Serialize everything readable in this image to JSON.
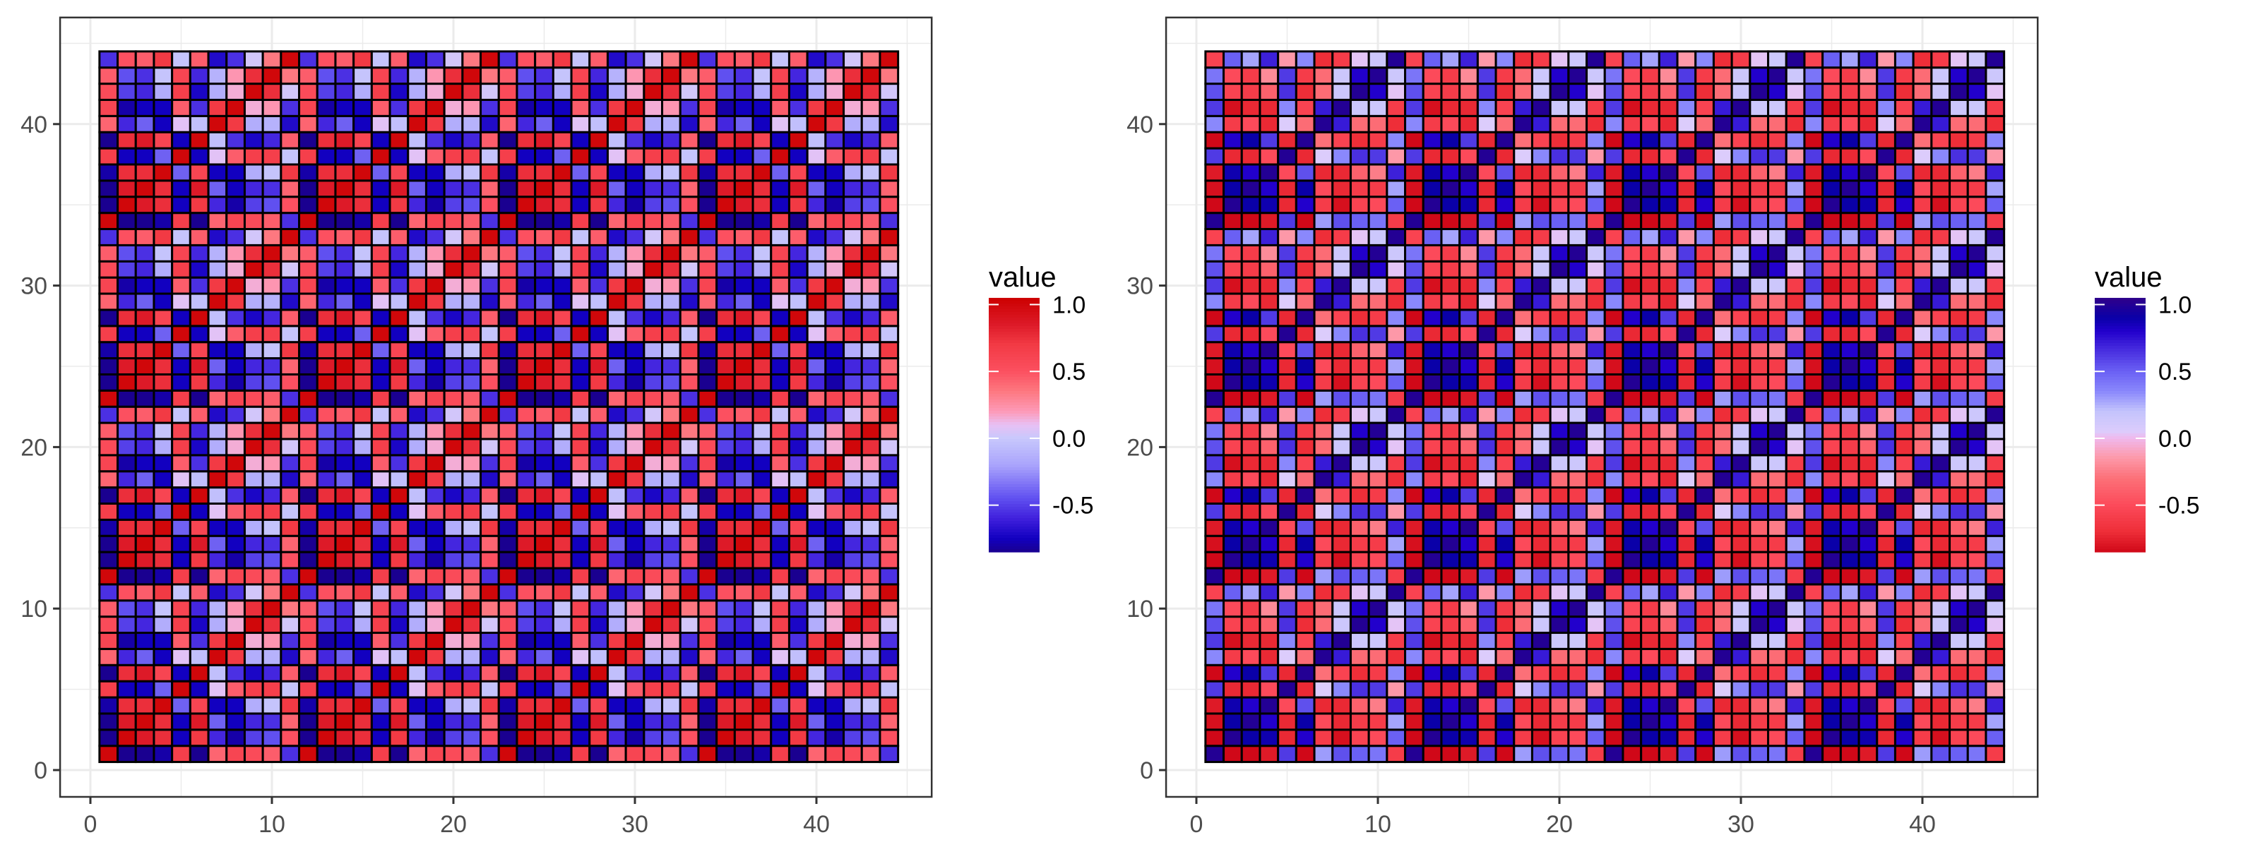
{
  "chart_data": [
    {
      "type": "heatmap",
      "title": "",
      "xlabel": "",
      "ylabel": "",
      "x_range": [
        1,
        44
      ],
      "y_range": [
        1,
        44
      ],
      "xlim": [
        -1.67,
        46.35
      ],
      "ylim": [
        -1.66,
        46.6
      ],
      "x_ticks": [
        "0",
        "10",
        "20",
        "30",
        "40"
      ],
      "y_ticks": [
        "0",
        "10",
        "20",
        "30",
        "40"
      ],
      "grid": true,
      "period": 11,
      "z_tile_rows_bottom_to_top": [
        [
          1.0,
          -0.85,
          -0.85,
          -0.8,
          0.65,
          -0.85,
          0.42,
          0.6,
          0.55,
          0.45,
          -0.55
        ],
        [
          -0.85,
          1.0,
          0.85,
          0.75,
          -0.75,
          0.7,
          -0.58,
          -0.8,
          -0.5,
          -0.45,
          0.5
        ],
        [
          -0.85,
          0.85,
          1.0,
          0.75,
          -0.75,
          0.85,
          -0.4,
          -0.75,
          -0.58,
          -0.55,
          0.42
        ],
        [
          -0.8,
          0.75,
          0.75,
          1.0,
          -0.4,
          0.6,
          -0.75,
          -0.75,
          -0.15,
          -0.02,
          0.7
        ],
        [
          0.65,
          -0.75,
          -0.75,
          -0.4,
          1.0,
          -0.75,
          0.08,
          0.45,
          0.65,
          0.65,
          -0.02
        ],
        [
          -0.85,
          0.75,
          0.85,
          0.6,
          -0.75,
          1.0,
          -0.05,
          -0.55,
          -0.72,
          -0.58,
          0.45
        ],
        [
          0.42,
          -0.58,
          -0.4,
          -0.75,
          0.08,
          -0.05,
          1.0,
          0.7,
          -0.15,
          -0.12,
          -0.7
        ],
        [
          0.6,
          -0.8,
          -0.75,
          -0.75,
          0.45,
          -0.55,
          0.7,
          1.0,
          0.15,
          0.22,
          -0.55
        ],
        [
          0.55,
          -0.5,
          -0.58,
          -0.15,
          0.65,
          -0.72,
          -0.15,
          0.15,
          1.0,
          0.75,
          0.03
        ],
        [
          0.45,
          -0.45,
          -0.55,
          -0.02,
          0.6,
          -0.58,
          -0.12,
          0.22,
          0.75,
          1.0,
          0.35
        ],
        [
          -0.55,
          0.5,
          0.45,
          0.7,
          -0.02,
          0.45,
          -0.7,
          -0.55,
          0.03,
          0.35,
          1.0
        ]
      ],
      "legend": {
        "title": "value",
        "position": "right",
        "range": [
          -0.85,
          1.05
        ],
        "ticks": [
          {
            "value": 1.0,
            "label": "1.0"
          },
          {
            "value": 0.5,
            "label": "0.5"
          },
          {
            "value": 0.0,
            "label": "0.0"
          },
          {
            "value": -0.5,
            "label": "-0.5"
          }
        ]
      },
      "palette": [
        [
          -0.85,
          "#1a0090"
        ],
        [
          -0.75,
          "#1200c0"
        ],
        [
          -0.6,
          "#4020dc"
        ],
        [
          -0.45,
          "#6050f0"
        ],
        [
          -0.2,
          "#aaa4fc"
        ],
        [
          0.0,
          "#c8c8fc"
        ],
        [
          0.1,
          "#e8c0f4"
        ],
        [
          0.2,
          "#fd9ab8"
        ],
        [
          0.35,
          "#fd7880"
        ],
        [
          0.5,
          "#fc5060"
        ],
        [
          0.7,
          "#f23a44"
        ],
        [
          0.85,
          "#dd1a28"
        ],
        [
          1.05,
          "#cc0000"
        ]
      ]
    },
    {
      "type": "heatmap",
      "title": "",
      "xlabel": "",
      "ylabel": "",
      "x_range": [
        1,
        44
      ],
      "y_range": [
        1,
        44
      ],
      "xlim": [
        -1.67,
        46.35
      ],
      "ylim": [
        -1.66,
        46.6
      ],
      "x_ticks": [
        "0",
        "10",
        "20",
        "30",
        "40"
      ],
      "y_ticks": [
        "0",
        "10",
        "20",
        "30",
        "40"
      ],
      "grid": true,
      "period": 11,
      "z_tile_rows_bottom_to_top": [
        [
          1.0,
          -0.85,
          -0.85,
          -0.78,
          0.62,
          -0.85,
          0.3,
          0.55,
          0.5,
          0.42,
          -0.6
        ],
        [
          -0.85,
          1.0,
          0.9,
          0.88,
          -0.72,
          0.8,
          -0.6,
          -0.82,
          -0.55,
          -0.5,
          0.5
        ],
        [
          -0.82,
          0.9,
          1.0,
          0.8,
          -0.72,
          0.9,
          -0.5,
          -0.72,
          -0.6,
          -0.6,
          0.28
        ],
        [
          -0.78,
          0.88,
          0.8,
          1.0,
          -0.5,
          0.55,
          -0.72,
          -0.72,
          -0.38,
          -0.25,
          0.7
        ],
        [
          0.62,
          -0.72,
          -0.72,
          -0.5,
          1.0,
          -0.72,
          0.05,
          0.35,
          0.65,
          0.62,
          -0.15
        ],
        [
          -0.85,
          0.8,
          0.9,
          0.62,
          -0.72,
          1.0,
          -0.3,
          -0.55,
          -0.7,
          -0.6,
          0.35
        ],
        [
          0.35,
          -0.6,
          -0.5,
          -0.72,
          0.05,
          -0.32,
          1.0,
          0.72,
          -0.32,
          -0.32,
          -0.7
        ],
        [
          0.62,
          -0.82,
          -0.72,
          -0.72,
          0.35,
          -0.55,
          0.72,
          1.0,
          0.15,
          0.15,
          -0.6
        ],
        [
          0.55,
          -0.55,
          -0.6,
          -0.38,
          0.65,
          -0.7,
          -0.32,
          0.15,
          1.0,
          0.8,
          0.03
        ],
        [
          0.42,
          -0.5,
          -0.6,
          -0.2,
          0.62,
          -0.6,
          -0.32,
          0.15,
          0.8,
          1.0,
          0.15
        ],
        [
          -0.55,
          0.5,
          0.28,
          0.7,
          -0.15,
          0.35,
          -0.7,
          -0.6,
          0.03,
          0.15,
          1.0
        ]
      ],
      "legend": {
        "title": "value",
        "position": "right",
        "range": [
          -0.85,
          1.05
        ],
        "ticks": [
          {
            "value": 1.0,
            "label": "1.0"
          },
          {
            "value": 0.5,
            "label": "0.5"
          },
          {
            "value": 0.0,
            "label": "0.0"
          },
          {
            "value": -0.5,
            "label": "-0.5"
          }
        ]
      },
      "palette": [
        [
          -0.85,
          "#d00818"
        ],
        [
          -0.7,
          "#ee2e38"
        ],
        [
          -0.5,
          "#fc4a5a"
        ],
        [
          -0.3,
          "#fc7078"
        ],
        [
          -0.15,
          "#fd98a8"
        ],
        [
          0.0,
          "#f0b8ec"
        ],
        [
          0.05,
          "#dcccfc"
        ],
        [
          0.2,
          "#c4c4fc"
        ],
        [
          0.35,
          "#8a88fc"
        ],
        [
          0.5,
          "#6a60f4"
        ],
        [
          0.65,
          "#4a30e0"
        ],
        [
          0.8,
          "#2200cc"
        ],
        [
          0.9,
          "#0a00a8"
        ],
        [
          1.05,
          "#30008a"
        ]
      ]
    }
  ]
}
